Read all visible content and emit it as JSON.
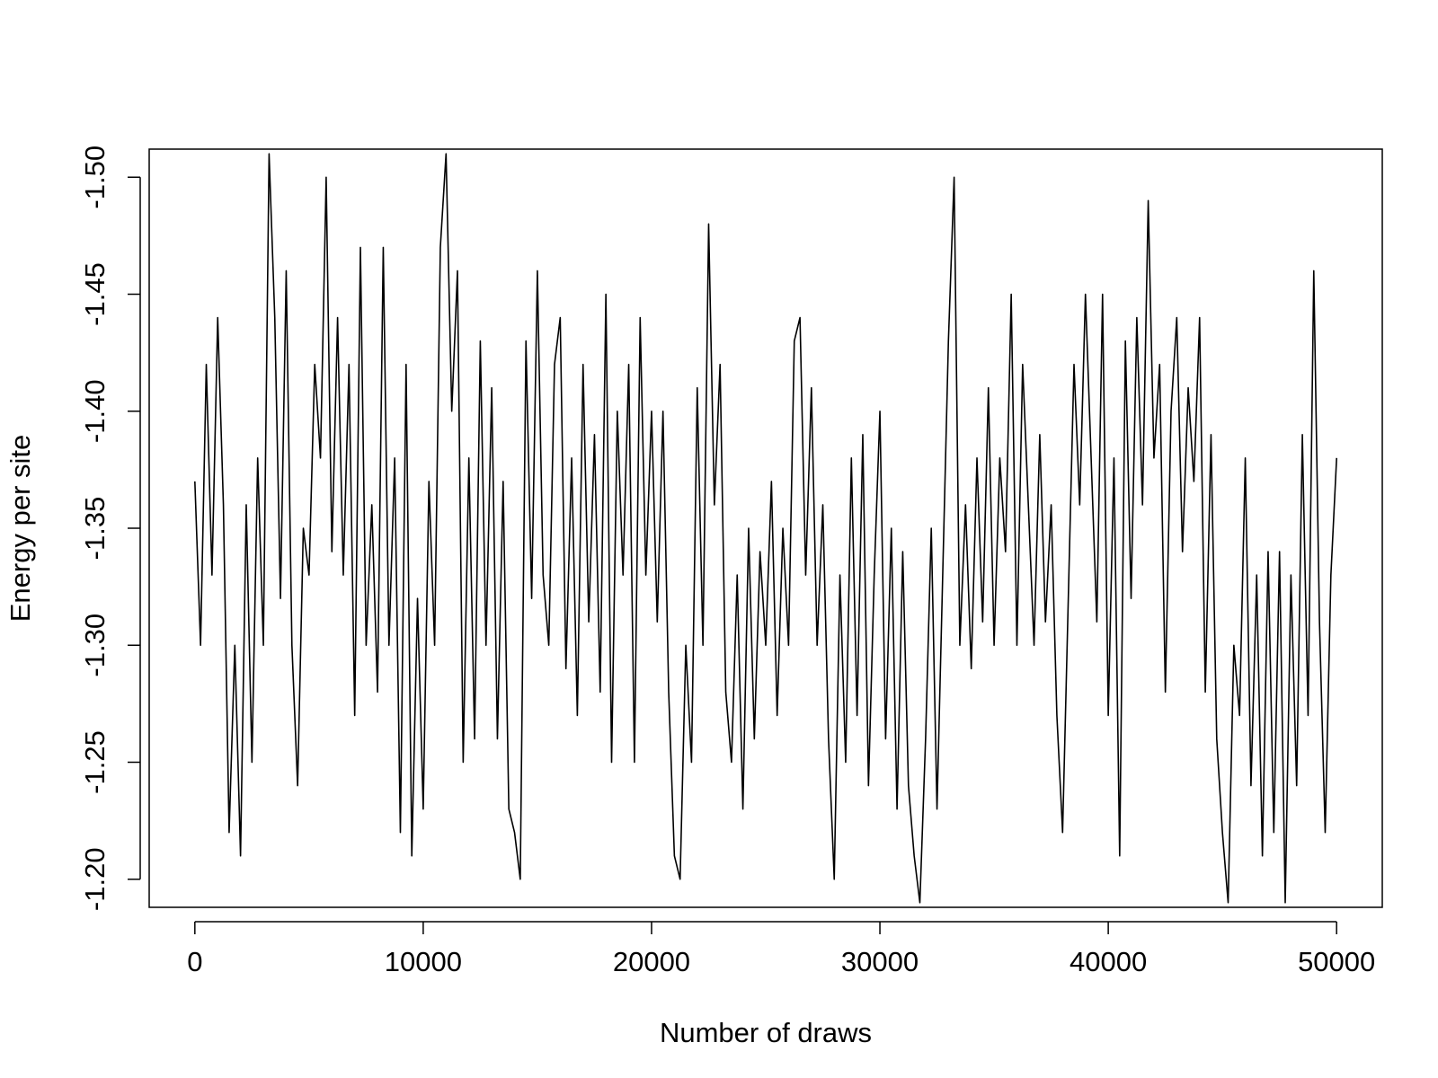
{
  "chart_data": {
    "type": "line",
    "xlabel": "Number of draws",
    "ylabel": "Energy per site",
    "x": [
      0,
      250,
      500,
      750,
      1000,
      1250,
      1500,
      1750,
      2000,
      2250,
      2500,
      2750,
      3000,
      3250,
      3500,
      3750,
      4000,
      4250,
      4500,
      4750,
      5000,
      5250,
      5500,
      5750,
      6000,
      6250,
      6500,
      6750,
      7000,
      7250,
      7500,
      7750,
      8000,
      8250,
      8500,
      8750,
      9000,
      9250,
      9500,
      9750,
      10000,
      10250,
      10500,
      10750,
      11000,
      11250,
      11500,
      11750,
      12000,
      12250,
      12500,
      12750,
      13000,
      13250,
      13500,
      13750,
      14000,
      14250,
      14500,
      14750,
      15000,
      15250,
      15500,
      15750,
      16000,
      16250,
      16500,
      16750,
      17000,
      17250,
      17500,
      17750,
      18000,
      18250,
      18500,
      18750,
      19000,
      19250,
      19500,
      19750,
      20000,
      20250,
      20500,
      20750,
      21000,
      21250,
      21500,
      21750,
      22000,
      22250,
      22500,
      22750,
      23000,
      23250,
      23500,
      23750,
      24000,
      24250,
      24500,
      24750,
      25000,
      25250,
      25500,
      25750,
      26000,
      26250,
      26500,
      26750,
      27000,
      27250,
      27500,
      27750,
      28000,
      28250,
      28500,
      28750,
      29000,
      29250,
      29500,
      29750,
      30000,
      30250,
      30500,
      30750,
      31000,
      31250,
      31500,
      31750,
      32000,
      32250,
      32500,
      32750,
      33000,
      33250,
      33500,
      33750,
      34000,
      34250,
      34500,
      34750,
      35000,
      35250,
      35500,
      35750,
      36000,
      36250,
      36500,
      36750,
      37000,
      37250,
      37500,
      37750,
      38000,
      38250,
      38500,
      38750,
      39000,
      39250,
      39500,
      39750,
      40000,
      40250,
      40500,
      40750,
      41000,
      41250,
      41500,
      41750,
      42000,
      42250,
      42500,
      42750,
      43000,
      43250,
      43500,
      43750,
      44000,
      44250,
      44500,
      44750,
      45000,
      45250,
      45500,
      45750,
      46000,
      46250,
      46500,
      46750,
      47000,
      47250,
      47500,
      47750,
      48000,
      48250,
      48500,
      48750,
      49000,
      49250,
      49500,
      49750,
      50000
    ],
    "series": [
      {
        "name": "Energy per site",
        "color": "#000000",
        "values": [
          -1.37,
          -1.3,
          -1.42,
          -1.33,
          -1.44,
          -1.36,
          -1.22,
          -1.3,
          -1.21,
          -1.36,
          -1.25,
          -1.38,
          -1.3,
          -1.51,
          -1.44,
          -1.32,
          -1.46,
          -1.3,
          -1.24,
          -1.35,
          -1.33,
          -1.42,
          -1.38,
          -1.5,
          -1.34,
          -1.44,
          -1.33,
          -1.42,
          -1.27,
          -1.47,
          -1.3,
          -1.36,
          -1.28,
          -1.47,
          -1.3,
          -1.38,
          -1.22,
          -1.42,
          -1.21,
          -1.32,
          -1.23,
          -1.37,
          -1.3,
          -1.47,
          -1.51,
          -1.4,
          -1.46,
          -1.25,
          -1.38,
          -1.26,
          -1.43,
          -1.3,
          -1.41,
          -1.26,
          -1.37,
          -1.23,
          -1.22,
          -1.2,
          -1.43,
          -1.32,
          -1.46,
          -1.33,
          -1.3,
          -1.42,
          -1.44,
          -1.29,
          -1.38,
          -1.27,
          -1.42,
          -1.31,
          -1.39,
          -1.28,
          -1.45,
          -1.25,
          -1.4,
          -1.33,
          -1.42,
          -1.25,
          -1.44,
          -1.33,
          -1.4,
          -1.31,
          -1.4,
          -1.28,
          -1.21,
          -1.2,
          -1.3,
          -1.25,
          -1.41,
          -1.3,
          -1.48,
          -1.36,
          -1.42,
          -1.28,
          -1.25,
          -1.33,
          -1.23,
          -1.35,
          -1.26,
          -1.34,
          -1.3,
          -1.37,
          -1.27,
          -1.35,
          -1.3,
          -1.43,
          -1.44,
          -1.33,
          -1.41,
          -1.3,
          -1.36,
          -1.26,
          -1.2,
          -1.33,
          -1.25,
          -1.38,
          -1.27,
          -1.39,
          -1.24,
          -1.33,
          -1.4,
          -1.26,
          -1.35,
          -1.23,
          -1.34,
          -1.24,
          -1.21,
          -1.19,
          -1.26,
          -1.35,
          -1.23,
          -1.33,
          -1.43,
          -1.5,
          -1.3,
          -1.36,
          -1.29,
          -1.38,
          -1.31,
          -1.41,
          -1.3,
          -1.38,
          -1.34,
          -1.45,
          -1.3,
          -1.42,
          -1.36,
          -1.3,
          -1.39,
          -1.31,
          -1.36,
          -1.27,
          -1.22,
          -1.32,
          -1.42,
          -1.36,
          -1.45,
          -1.38,
          -1.31,
          -1.45,
          -1.27,
          -1.38,
          -1.21,
          -1.43,
          -1.32,
          -1.44,
          -1.36,
          -1.49,
          -1.38,
          -1.42,
          -1.28,
          -1.4,
          -1.44,
          -1.34,
          -1.41,
          -1.37,
          -1.44,
          -1.28,
          -1.39,
          -1.26,
          -1.22,
          -1.19,
          -1.3,
          -1.27,
          -1.38,
          -1.24,
          -1.33,
          -1.21,
          -1.34,
          -1.22,
          -1.34,
          -1.19,
          -1.33,
          -1.24,
          -1.39,
          -1.27,
          -1.46,
          -1.31,
          -1.22,
          -1.33,
          -1.38
        ]
      }
    ],
    "xlim": [
      -2000,
      52000
    ],
    "xticks": [
      0,
      10000,
      20000,
      30000,
      40000,
      50000
    ],
    "ylim": [
      -1.188,
      -1.512
    ],
    "yticks": [
      {
        "value": -1.2,
        "label": "-1.20"
      },
      -1.25,
      {
        "value": -1.3,
        "label": "-1.30"
      },
      -1.35,
      {
        "value": -1.4,
        "label": "-1.40"
      },
      -1.45,
      {
        "value": -1.5,
        "label": "-1.50"
      }
    ],
    "grid": false
  }
}
